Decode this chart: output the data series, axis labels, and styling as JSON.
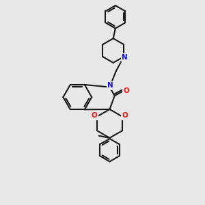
{
  "background_color": "#e8e8e8",
  "bond_color": "#1a1a1a",
  "N_color": "#1010ff",
  "O_color": "#ff1010",
  "bond_lw": 1.5,
  "font_size": 7.5,
  "figsize": [
    3.0,
    3.0
  ],
  "dpi": 100,
  "xlim": [
    55,
    235
  ],
  "ylim": [
    10,
    295
  ]
}
